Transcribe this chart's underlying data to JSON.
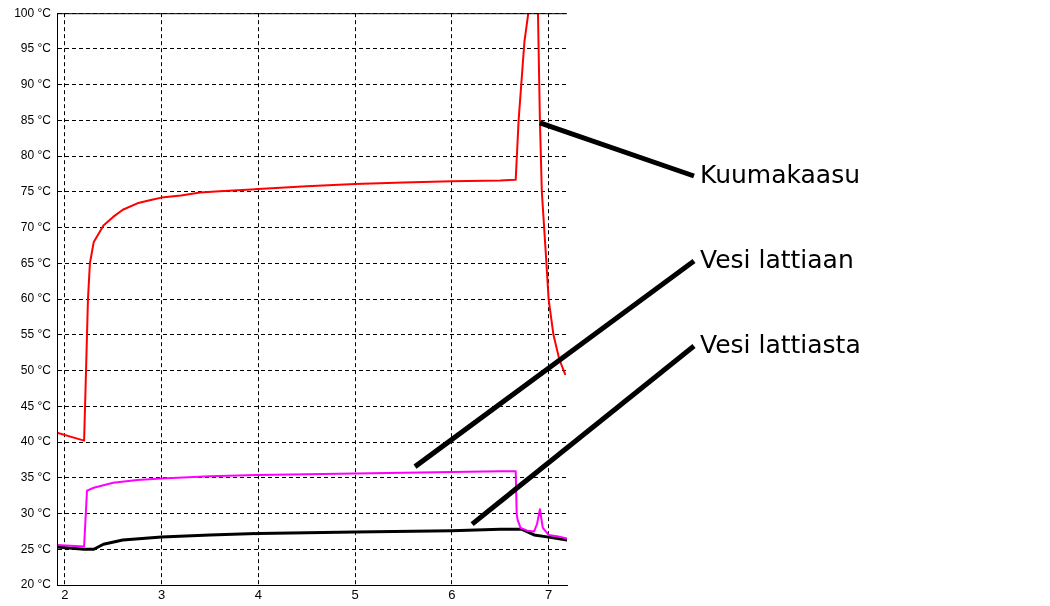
{
  "chart_data": {
    "type": "line",
    "legend": false,
    "grid": true,
    "marker": "none",
    "line_style": "solid",
    "xlim": [
      1.92,
      7.19
    ],
    "xticks": [
      2,
      3,
      4,
      5,
      6,
      7
    ],
    "ylim": [
      20,
      100
    ],
    "yticks": [
      {
        "value": 20,
        "label": "20 °C"
      },
      {
        "value": 25,
        "label": "25 °C"
      },
      {
        "value": 30,
        "label": "30 °C"
      },
      {
        "value": 35,
        "label": "35 °C"
      },
      {
        "value": 40,
        "label": "40 °C"
      },
      {
        "value": 45,
        "label": "45 °C"
      },
      {
        "value": 50,
        "label": "50 °C"
      },
      {
        "value": 55,
        "label": "55 °C"
      },
      {
        "value": 60,
        "label": "60 °C"
      },
      {
        "value": 65,
        "label": "65 °C"
      },
      {
        "value": 70,
        "label": "70 °C"
      },
      {
        "value": 75,
        "label": "75 °C"
      },
      {
        "value": 80,
        "label": "80 °C"
      },
      {
        "value": 85,
        "label": "85 °C"
      },
      {
        "value": 90,
        "label": "90 °C"
      },
      {
        "value": 95,
        "label": "95 °C"
      },
      {
        "value": 100,
        "label": "100 °C"
      }
    ],
    "series": [
      {
        "name": "Kuumakaasu",
        "color": "#ff0000",
        "x": [
          1.92,
          2.2,
          2.22,
          2.24,
          2.26,
          2.3,
          2.4,
          2.5,
          2.6,
          2.75,
          2.9,
          3.0,
          3.2,
          3.4,
          3.6,
          4.0,
          4.5,
          5.0,
          5.5,
          6.0,
          6.5,
          6.66,
          6.69,
          6.75,
          6.79,
          6.84,
          6.89,
          6.91,
          6.93,
          6.97,
          7.0,
          7.05,
          7.11,
          7.17
        ],
        "values": [
          41.3,
          40.2,
          50,
          60,
          65,
          68,
          70.3,
          71.5,
          72.5,
          73.4,
          73.9,
          74.2,
          74.5,
          74.9,
          75.1,
          75.4,
          75.8,
          76.1,
          76.3,
          76.5,
          76.6,
          76.7,
          85,
          96,
          100,
          null,
          100,
          85,
          75,
          66.6,
          60,
          55,
          51.6,
          49.5
        ]
      },
      {
        "name": "Vesi lattiaan",
        "color": "#ff00ff",
        "x": [
          1.92,
          2.2,
          2.23,
          2.3,
          2.5,
          2.75,
          3.0,
          3.5,
          4.0,
          4.5,
          5.0,
          5.5,
          6.0,
          6.5,
          6.66,
          6.67,
          6.68,
          6.71,
          6.78,
          6.85,
          6.88,
          6.91,
          6.94,
          7.0,
          7.1,
          7.19
        ],
        "values": [
          25.6,
          25.4,
          33.2,
          33.6,
          34.3,
          34.7,
          34.9,
          35.2,
          35.4,
          35.5,
          35.6,
          35.7,
          35.8,
          35.9,
          35.9,
          30,
          29.1,
          28,
          27.6,
          27.5,
          28.5,
          30.6,
          28,
          27,
          26.8,
          26.5
        ]
      },
      {
        "name": "Vesi lattiasta",
        "color": "#000000",
        "x": [
          1.92,
          2.2,
          2.3,
          2.4,
          2.6,
          3.0,
          3.5,
          4.0,
          5.0,
          6.0,
          6.5,
          6.72,
          6.85,
          7.0,
          7.19
        ],
        "values": [
          25.3,
          25.0,
          25.0,
          25.7,
          26.3,
          26.7,
          27.0,
          27.2,
          27.4,
          27.6,
          27.8,
          27.8,
          27.0,
          26.7,
          26.3
        ]
      }
    ]
  }
}
